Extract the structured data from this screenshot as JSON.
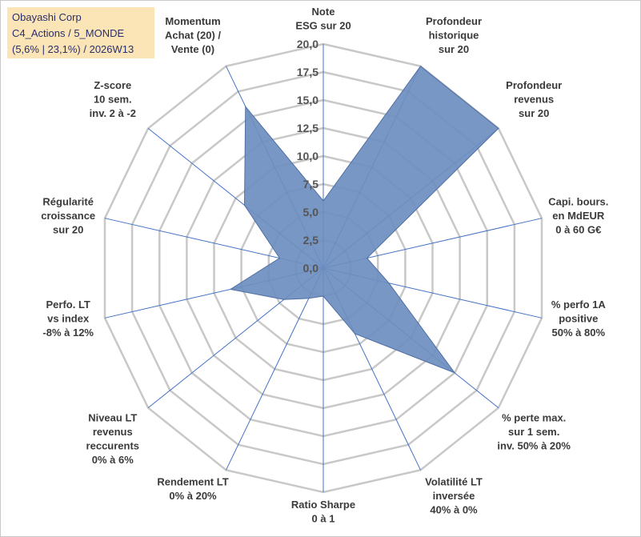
{
  "header": {
    "line1": "Obayashi Corp",
    "line2": "C4_Actions / 5_MONDE",
    "line3": "(5,6% | 23,1%) / 2026W13"
  },
  "colors": {
    "fill": "#6c8ebf",
    "stroke": "#4f6fa3",
    "grid": "#c8c8c8",
    "spoke": "#4472c4",
    "header_bg": "#fbe5b6"
  },
  "chart_data": {
    "type": "radar",
    "rmax": 20,
    "ticks": [
      "0,0",
      "2,5",
      "5,0",
      "7,5",
      "10,0",
      "12,5",
      "15,0",
      "17,5",
      "20,0"
    ],
    "axes": [
      [
        "Note",
        "ESG sur 20"
      ],
      [
        "Profondeur",
        "historique",
        "sur 20"
      ],
      [
        "Profondeur",
        "revenus",
        "sur 20"
      ],
      [
        "Capi. bours.",
        "en MdEUR",
        "0 à 60 G€"
      ],
      [
        "% perfo 1A",
        "positive",
        "50% à 80%"
      ],
      [
        "% perte max.",
        "sur 1 sem.",
        "inv. 50% à 20%"
      ],
      [
        "Volatilité LT",
        "inversée",
        "40% à 0%"
      ],
      [
        "Ratio Sharpe",
        "0 à 1"
      ],
      [
        "Rendement LT",
        "0% à 20%"
      ],
      [
        "Niveau LT",
        "revenus",
        "reccurents",
        "0% à 6%"
      ],
      [
        "Perfo. LT",
        "vs index",
        "-8% à 12%"
      ],
      [
        "Régularité",
        "croissance",
        "sur 20"
      ],
      [
        "Z-score",
        "10 sem.",
        "inv. 2 à -2"
      ],
      [
        "Momentum",
        "Achat (20) /",
        "Vente (0)"
      ]
    ],
    "values": [
      6,
      20,
      20,
      4,
      6,
      15,
      6.5,
      2.5,
      3,
      4.5,
      8.5,
      4,
      9,
      16
    ],
    "grid": true,
    "legend": "none"
  }
}
